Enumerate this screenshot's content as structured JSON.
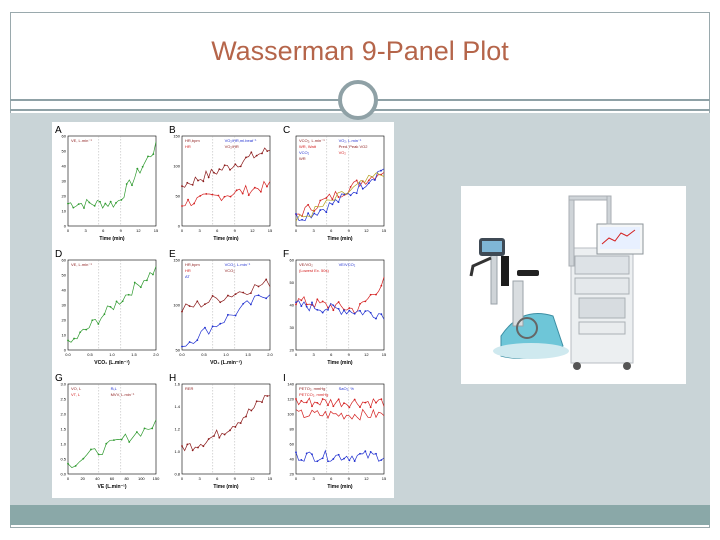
{
  "slide": {
    "title": "Wasserman 9-Panel Plot"
  },
  "colors": {
    "title": "#b5654a",
    "content_bg": "#c9d4d7",
    "footer_bar": "#8aa8a8",
    "green_trace": "#2f9a2f",
    "maroon_trace": "#8b1a1a",
    "red_trace": "#d42020",
    "blue_trace": "#1f2fd0"
  },
  "figure": {
    "panels": [
      {
        "letter": "A",
        "labels": [
          "VE, L.min⁻¹"
        ],
        "yticks": [
          "60",
          "50",
          "40",
          "30",
          "20",
          "10",
          "0"
        ],
        "xticks": [
          "0",
          "3",
          "6",
          "9",
          "12",
          "15"
        ],
        "xlabel": "Time (min)"
      },
      {
        "letter": "B",
        "labels": [
          "HR,bpm",
          "VO₂/HR,ml.beat⁻¹",
          "HR",
          "VO₂/HR"
        ],
        "yticks": [
          "150",
          "100",
          "50",
          "0"
        ],
        "xticks": [
          "0",
          "3",
          "6",
          "9",
          "12",
          "15"
        ],
        "xlabel": "Time (min)"
      },
      {
        "letter": "C",
        "labels": [
          "VCO₂, L.min⁻¹",
          "VO₂, L.min⁻¹",
          "WR, Watt",
          "Pred. Peak VO2",
          "VCO₂",
          "VO₂",
          "WR"
        ],
        "yticks": [],
        "xticks": [
          "0",
          "3",
          "6",
          "9",
          "12",
          "15"
        ],
        "xlabel": "Time (min)"
      },
      {
        "letter": "D",
        "labels": [
          "VE, L.min⁻¹"
        ],
        "yticks": [
          "60",
          "50",
          "40",
          "30",
          "20",
          "10",
          "0"
        ],
        "xticks": [
          "0.0",
          "0.5",
          "1.0",
          "1.5",
          "2.0"
        ],
        "xlabel": "VCO₂ (L.min⁻¹)"
      },
      {
        "letter": "E",
        "labels": [
          "HR,bpm",
          "VCO₂, L.min⁻¹",
          "HR",
          "VCO₂",
          "AT"
        ],
        "yticks": [
          "150",
          "100",
          "50"
        ],
        "xticks": [
          "0.0",
          "0.5",
          "1.0",
          "1.5",
          "2.0"
        ],
        "xlabel": "VO₂ (L.min⁻¹)"
      },
      {
        "letter": "F",
        "labels": [
          "VE/VO₂",
          "VE/VCO₂",
          "(Lowest Ex. 50s)"
        ],
        "yticks": [
          "60",
          "50",
          "40",
          "30",
          "20"
        ],
        "xticks": [
          "0",
          "3",
          "6",
          "9",
          "12",
          "15"
        ],
        "xlabel": "Time (min)"
      },
      {
        "letter": "G",
        "labels": [
          "VO, L",
          "RₜL",
          "VT, L",
          "MVV, L.min⁻¹"
        ],
        "yticks": [
          "3.0",
          "2.5",
          "2.0",
          "1.5",
          "1.0",
          "0.5",
          "0.0"
        ],
        "xticks": [
          "0",
          "20",
          "40",
          "60",
          "80",
          "100",
          "150"
        ],
        "xlabel": "VE (L.min⁻¹)"
      },
      {
        "letter": "H",
        "labels": [
          "RER"
        ],
        "yticks": [
          "1.6",
          "1.4",
          "1.2",
          "1.0",
          "0.8"
        ],
        "xticks": [
          "0",
          "3",
          "6",
          "9",
          "12",
          "15"
        ],
        "xlabel": "Time (min)"
      },
      {
        "letter": "I",
        "labels": [
          "PETO₂, mmHg",
          "SaO₂, %",
          "PETCO₂, mmHg"
        ],
        "yticks": [
          "140",
          "120",
          "100",
          "80",
          "60",
          "40",
          "20"
        ],
        "xticks": [
          "0",
          "3",
          "6",
          "9",
          "12",
          "15"
        ],
        "xlabel": "Time (min)"
      }
    ]
  },
  "photo": {
    "subject": "cycle-ergometer-with-metabolic-cart"
  }
}
